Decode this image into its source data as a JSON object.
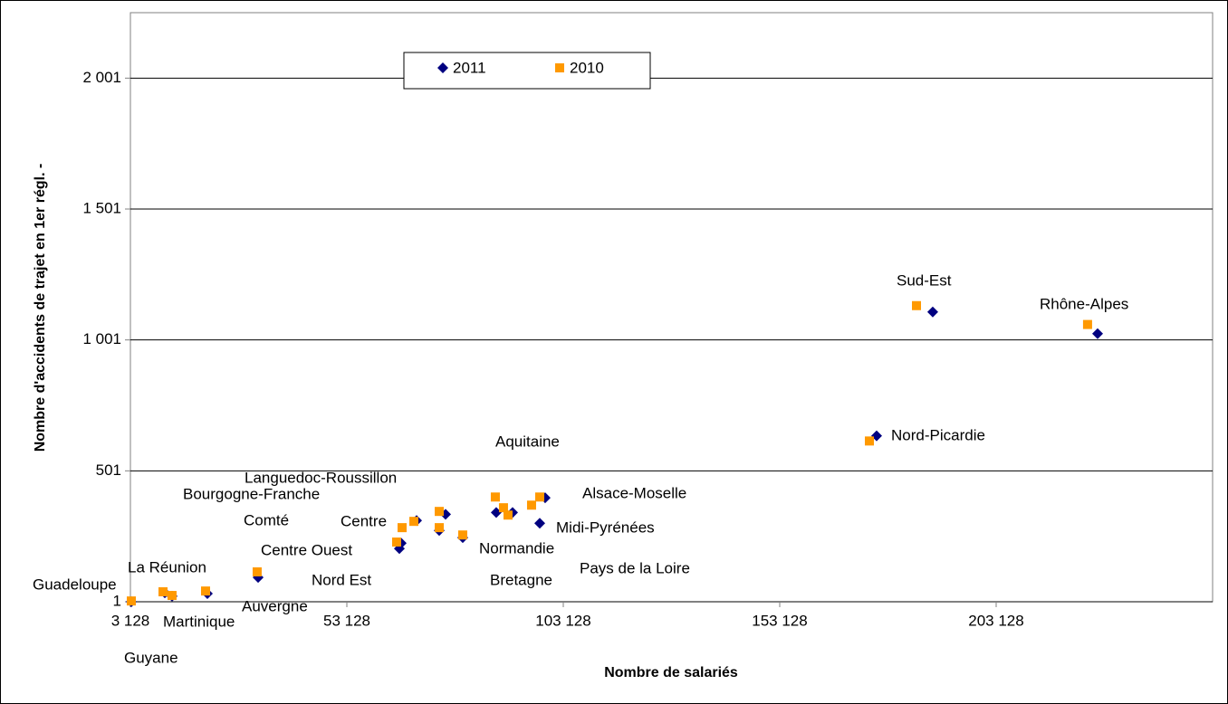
{
  "chart_data": {
    "type": "scatter",
    "xlabel": "Nombre de salariés",
    "ylabel": "Nombre d'accidents de trajet en 1er régl. -",
    "xlim": [
      3128,
      253128
    ],
    "xticks": [
      {
        "value": 3128,
        "label": "3 128"
      },
      {
        "value": 53128,
        "label": "53 128"
      },
      {
        "value": 103128,
        "label": "103 128"
      },
      {
        "value": 153128,
        "label": "153 128"
      },
      {
        "value": 203128,
        "label": "203 128"
      }
    ],
    "ylim": [
      1,
      2251
    ],
    "yticks": [
      1,
      {
        "value": 501,
        "label": "501"
      },
      {
        "value": 1001,
        "label": "1 001"
      },
      {
        "value": 1501,
        "label": "1 501"
      },
      {
        "value": 2001,
        "label": "2 001"
      }
    ],
    "grid": true,
    "legend": "top",
    "series": [
      {
        "name": "2011",
        "color": "#000080",
        "marker": "diamond",
        "x": [
          3337,
          11078,
          12750,
          20910,
          32630,
          65260,
          65680,
          69240,
          74470,
          75930,
          79900,
          87640,
          91410,
          98940,
          97690,
          188480,
          226560,
          175510
        ],
        "values": [
          1,
          35,
          22,
          32,
          94,
          204,
          225,
          311,
          273,
          335,
          246,
          342,
          342,
          398,
          301,
          1108,
          1025,
          635
        ]
      },
      {
        "name": "2010",
        "color": "#ff9900",
        "marker": "square",
        "x": [
          3337,
          10660,
          12750,
          20490,
          32410,
          64630,
          65890,
          68610,
          74470,
          74470,
          79900,
          87430,
          89310,
          90360,
          95800,
          97690,
          184720,
          224240,
          173840
        ],
        "values": [
          4,
          39,
          25,
          42,
          115,
          229,
          284,
          308,
          346,
          284,
          256,
          401,
          360,
          332,
          370,
          401,
          1132,
          1060,
          615
        ]
      }
    ],
    "annotations": [
      "Guadeloupe",
      "La Réunion",
      "Martinique",
      "Guyane",
      "Auvergne",
      "Nord Est",
      "Centre Ouest",
      "Comté",
      "Centre",
      "Bourgogne-Franche",
      "Languedoc-Roussillon",
      "Aquitaine",
      "Normandie",
      "Bretagne",
      "Pays de la Loire",
      "Midi-Pyrénées",
      "Alsace-Moselle",
      "Sud-Est",
      "Rhône-Alpes",
      "Nord-Picardie"
    ]
  }
}
